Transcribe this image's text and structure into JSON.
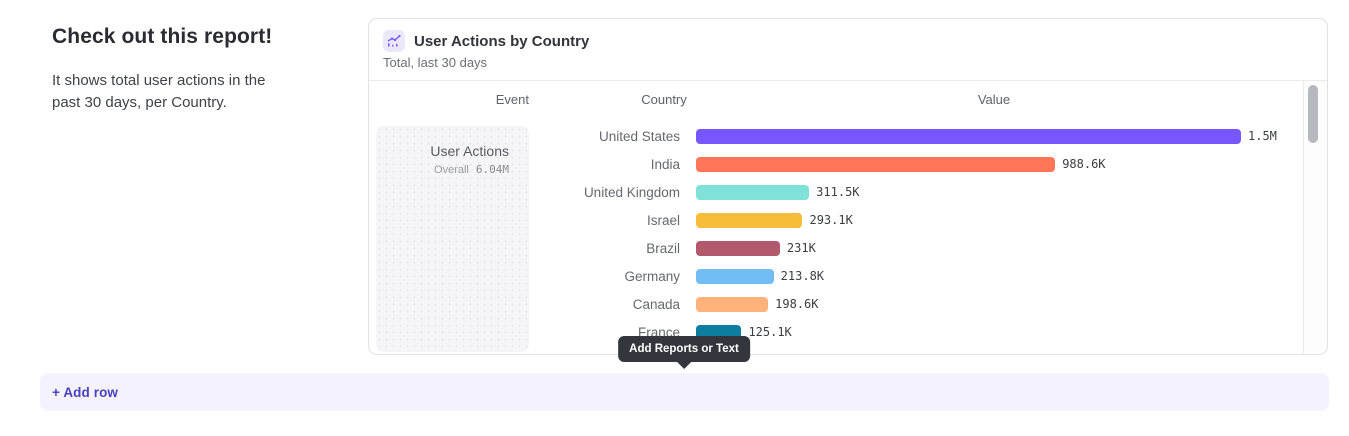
{
  "intro": {
    "title": "Check out this report!",
    "description": "It shows total user actions in the past 30 days, per Country."
  },
  "report": {
    "title": "User Actions by Country",
    "subtitle": "Total, last 30 days",
    "icon": "line-chart-icon",
    "icon_color": "#7856FF",
    "icon_bg": "#ebe7fd",
    "columns": [
      "Event",
      "Country",
      "Value"
    ],
    "event": {
      "name": "User Actions",
      "overall_label": "Overall",
      "overall_value": "6.04M"
    },
    "rows": [
      {
        "country": "United States",
        "value": 1500000,
        "value_label": "1.5M",
        "color": "#7856FF"
      },
      {
        "country": "India",
        "value": 988600,
        "value_label": "988.6K",
        "color": "#FF7557"
      },
      {
        "country": "United Kingdom",
        "value": 311500,
        "value_label": "311.5K",
        "color": "#80E1D9"
      },
      {
        "country": "Israel",
        "value": 293100,
        "value_label": "293.1K",
        "color": "#F8BC3B"
      },
      {
        "country": "Brazil",
        "value": 231000,
        "value_label": "231K",
        "color": "#B2596E"
      },
      {
        "country": "Germany",
        "value": 213800,
        "value_label": "213.8K",
        "color": "#72BEF4"
      },
      {
        "country": "Canada",
        "value": 198600,
        "value_label": "198.6K",
        "color": "#FFB27A"
      },
      {
        "country": "France",
        "value": 125100,
        "value_label": "125.1K",
        "color": "#0D7EA0"
      }
    ]
  },
  "chart_data": {
    "type": "bar",
    "orientation": "horizontal",
    "title": "User Actions by Country",
    "subtitle": "Total, last 30 days",
    "series_name": "User Actions",
    "overall_total": "6.04M",
    "categories": [
      "United States",
      "India",
      "United Kingdom",
      "Israel",
      "Brazil",
      "Germany",
      "Canada",
      "France"
    ],
    "values": [
      1500000,
      988600,
      311500,
      293100,
      231000,
      213800,
      198600,
      125100
    ],
    "value_labels": [
      "1.5M",
      "988.6K",
      "311.5K",
      "293.1K",
      "231K",
      "213.8K",
      "198.6K",
      "125.1K"
    ],
    "colors": [
      "#7856FF",
      "#FF7557",
      "#80E1D9",
      "#F8BC3B",
      "#B2596E",
      "#72BEF4",
      "#FFB27A",
      "#0D7EA0"
    ],
    "xlim": [
      0,
      1500000
    ],
    "grid": false,
    "legend": false
  },
  "tooltip": {
    "label": "Add Reports or Text"
  },
  "footer": {
    "add_row_label": "+ Add row",
    "accent_color": "#4b40bd"
  }
}
